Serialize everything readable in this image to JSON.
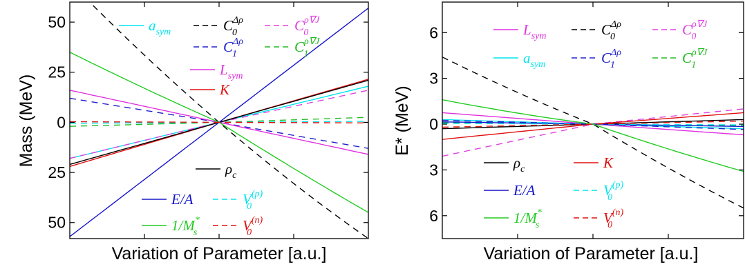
{
  "chart_data": [
    {
      "type": "line",
      "xlabel": "Variation of Parameter [a.u.]",
      "ylabel": "Mass (MeV)",
      "ylim": [
        -58,
        60
      ],
      "xlim": [
        -1,
        1
      ],
      "yticks": [
        {
          "value": 50,
          "label": "50"
        },
        {
          "value": 25,
          "label": "25"
        },
        {
          "value": 0,
          "label": "0"
        },
        {
          "value": -25,
          "label": "25"
        },
        {
          "value": -50,
          "label": "50"
        }
      ],
      "series": [
        {
          "name": "a_sym",
          "legend_base": "a",
          "legend_sub": "sym",
          "color": "#00e5ee",
          "dash": "solid",
          "left": -18,
          "right": 18
        },
        {
          "name": "C0 Δρ",
          "legend_base": "C",
          "legend_sub": "0",
          "legend_sup": "Δρ",
          "color": "#000000",
          "dash": "dashed",
          "left": 70,
          "right": -58,
          "curve": 6
        },
        {
          "name": "C0 ρ∇J",
          "legend_base": "C",
          "legend_sub": "0",
          "legend_sup": "ρ∇J",
          "color": "#e040e0",
          "dash": "dashed",
          "left": -18,
          "right": 16
        },
        {
          "name": "C1 Δρ",
          "legend_base": "C",
          "legend_sub": "1",
          "legend_sup": "Δρ",
          "color": "#2222cc",
          "dash": "dashed",
          "left": 12,
          "right": -13
        },
        {
          "name": "C1 ρ∇J",
          "legend_base": "C",
          "legend_sub": "1",
          "legend_sup": "ρ∇J",
          "color": "#22bb22",
          "dash": "dashed",
          "left": -2,
          "right": 2.5
        },
        {
          "name": "L_sym",
          "legend_base": "L",
          "legend_sub": "sym",
          "color": "#e030e0",
          "dash": "solid",
          "left": 16,
          "right": -16
        },
        {
          "name": "K",
          "legend_base": "K",
          "color": "#e01010",
          "dash": "solid",
          "left": -22,
          "right": 21.5
        },
        {
          "name": "ρc",
          "legend_base": "ρ",
          "legend_sub": "c",
          "color": "#000000",
          "dash": "solid",
          "left": -21,
          "right": 21
        },
        {
          "name": "E/A",
          "legend_base": "E/A",
          "color": "#1515cc",
          "dash": "solid",
          "left": -57,
          "right": 57
        },
        {
          "name": "V0 (p)",
          "legend_base": "V",
          "legend_sub": "0",
          "legend_sup": "(p)",
          "color": "#00e5ee",
          "dash": "dashed",
          "left": -0.5,
          "right": 0.5
        },
        {
          "name": "1/M*s",
          "legend_base": "1/M",
          "legend_sub": "s",
          "legend_sup": "*",
          "color": "#22cc22",
          "dash": "solid",
          "left": 35,
          "right": -45,
          "curve": 2
        },
        {
          "name": "V0 (n)",
          "legend_base": "V",
          "legend_sub": "0",
          "legend_sup": "(n)",
          "color": "#e01010",
          "dash": "dashed",
          "left": 0.3,
          "right": -0.3
        }
      ]
    },
    {
      "type": "line",
      "xlabel": "Variation of Parameter [a.u.]",
      "ylabel": "E* (MeV)",
      "ylim": [
        -7.5,
        8
      ],
      "xlim": [
        -1,
        1
      ],
      "yticks": [
        {
          "value": 6,
          "label": "6"
        },
        {
          "value": 3,
          "label": "3"
        },
        {
          "value": 0,
          "label": "0"
        },
        {
          "value": -3,
          "label": "3"
        },
        {
          "value": -6,
          "label": "6"
        }
      ],
      "series": [
        {
          "name": "L_sym",
          "legend_base": "L",
          "legend_sub": "sym",
          "color": "#e030e0",
          "dash": "solid",
          "left": 0.75,
          "right": -0.7
        },
        {
          "name": "C0 Δρ",
          "legend_base": "C",
          "legend_sub": "0",
          "legend_sup": "Δρ",
          "color": "#000000",
          "dash": "dashed",
          "left": 4.4,
          "right": -5.5,
          "curve": 0.5
        },
        {
          "name": "C0 ρ∇J",
          "legend_base": "C",
          "legend_sub": "0",
          "legend_sup": "ρ∇J",
          "color": "#e040e0",
          "dash": "dashed",
          "left": -2.1,
          "right": 1.0
        },
        {
          "name": "a_sym",
          "legend_base": "a",
          "legend_sub": "sym",
          "color": "#00e5ee",
          "dash": "solid",
          "left": 0.3,
          "right": -0.3
        },
        {
          "name": "C1 Δρ",
          "legend_base": "C",
          "legend_sub": "1",
          "legend_sup": "Δρ",
          "color": "#2222cc",
          "dash": "dashed",
          "left": 0.25,
          "right": -0.35
        },
        {
          "name": "C1 ρ∇J",
          "legend_base": "C",
          "legend_sub": "1",
          "legend_sup": "ρ∇J",
          "color": "#22bb22",
          "dash": "dashed",
          "left": 0.1,
          "right": -0.1
        },
        {
          "name": "ρc",
          "legend_base": "ρ",
          "legend_sub": "c",
          "color": "#000000",
          "dash": "solid",
          "left": -0.3,
          "right": 0.3
        },
        {
          "name": "K",
          "legend_base": "K",
          "color": "#e01010",
          "dash": "solid",
          "left": -1.0,
          "right": 0.75
        },
        {
          "name": "E/A",
          "legend_base": "E/A",
          "color": "#1515cc",
          "dash": "solid",
          "left": 0.15,
          "right": -0.15
        },
        {
          "name": "V0 (p)",
          "legend_base": "V",
          "legend_sub": "0",
          "legend_sup": "(p)",
          "color": "#00e5ee",
          "dash": "dashed",
          "left": 0.05,
          "right": -0.05
        },
        {
          "name": "1/M*s",
          "legend_base": "1/M",
          "legend_sub": "s",
          "legend_sup": "*",
          "color": "#22cc22",
          "dash": "solid",
          "left": 1.6,
          "right": -3.1,
          "curve": 0.3
        },
        {
          "name": "V0 (n)",
          "legend_base": "V",
          "legend_sub": "0",
          "legend_sup": "(n)",
          "color": "#e01010",
          "dash": "dashed",
          "left": -0.2,
          "right": 0.2
        }
      ]
    }
  ]
}
